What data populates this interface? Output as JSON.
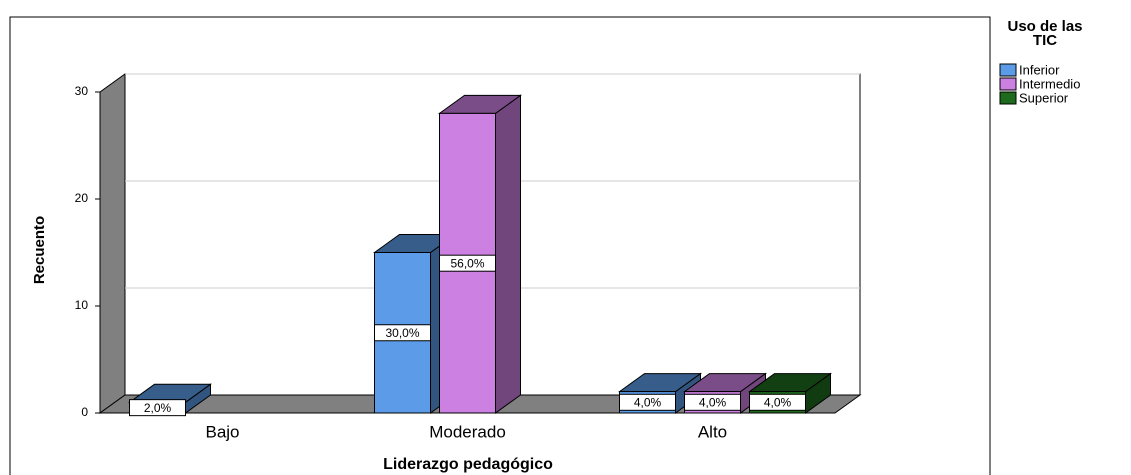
{
  "chart_data": {
    "type": "bar3d",
    "y_label": "Recuento",
    "x_label": "Liderazgo pedagógico",
    "legend_title": "Uso de las TIC",
    "categories": [
      "Bajo",
      "Moderado",
      "Alto"
    ],
    "series": [
      {
        "name": "Inferior",
        "color": "#5b9be8",
        "values": [
          1,
          15,
          2
        ],
        "value_labels": [
          "2,0%",
          "30,0%",
          "4,0%"
        ]
      },
      {
        "name": "Intermedio",
        "color": "#cc80e2",
        "values": [
          null,
          28,
          2
        ],
        "value_labels": [
          null,
          "56,0%",
          "4,0%"
        ]
      },
      {
        "name": "Superior",
        "color": "#1e6b1e",
        "values": [
          null,
          null,
          2
        ],
        "value_labels": [
          null,
          null,
          "4,0%"
        ]
      }
    ],
    "ylim": [
      0,
      30
    ],
    "yticks": [
      0,
      10,
      20,
      30
    ],
    "grid": true,
    "legend": "upper right"
  }
}
